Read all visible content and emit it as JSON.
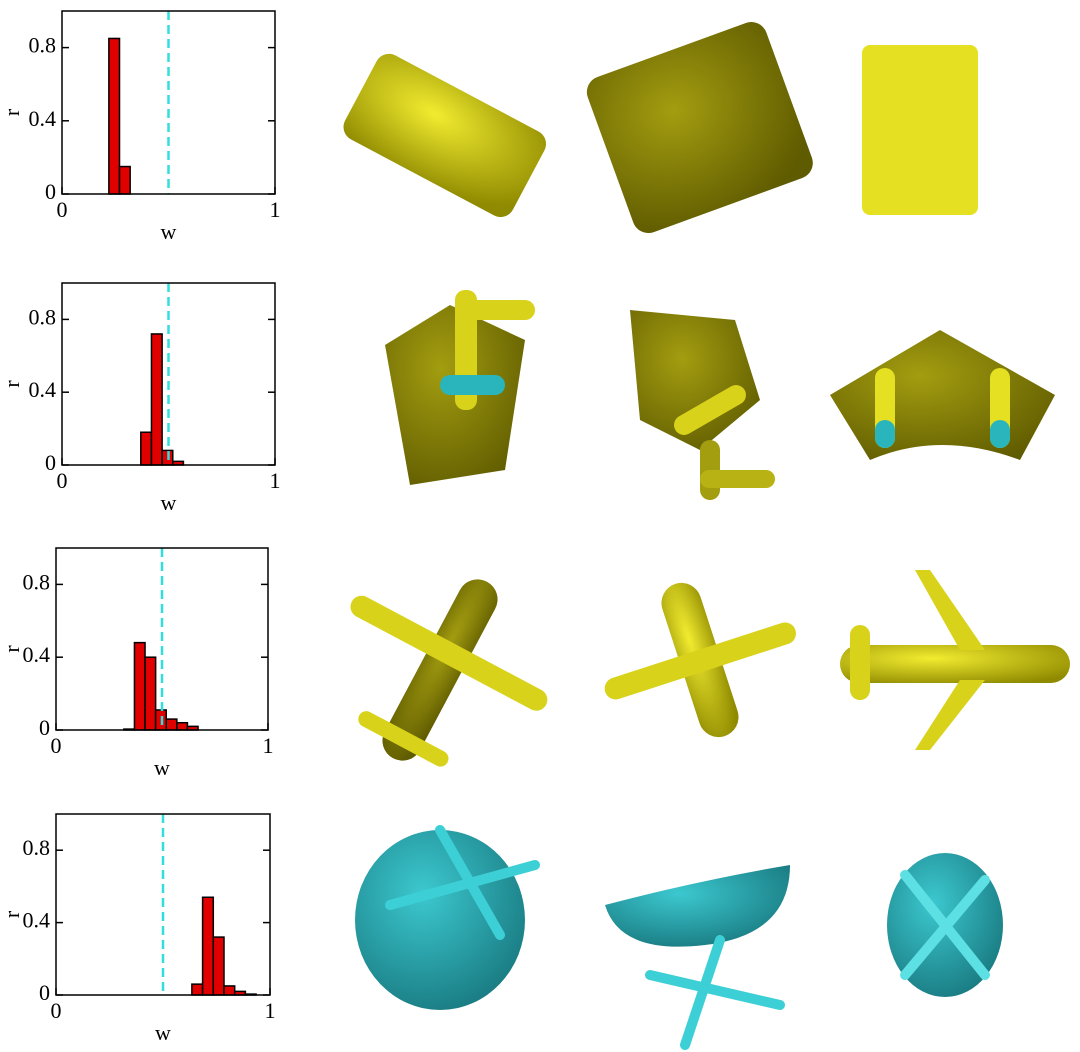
{
  "chart_data": [
    {
      "type": "histogram",
      "xlabel": "w",
      "ylabel": "r",
      "bins": [
        0.22,
        0.27,
        0.32
      ],
      "values": [
        0.85,
        0.15
      ],
      "color": "#e00000",
      "xlim": [
        0,
        1
      ],
      "ylim": [
        0,
        1
      ],
      "xticks": [
        0,
        1
      ],
      "yticks": [
        0,
        0.4,
        0.8
      ],
      "vline": 0.5,
      "vline_color": "#33dddd"
    },
    {
      "type": "histogram",
      "xlabel": "w",
      "ylabel": "r",
      "bins": [
        0.37,
        0.42,
        0.47,
        0.52,
        0.57
      ],
      "values": [
        0.18,
        0.72,
        0.08,
        0.02
      ],
      "color": "#e00000",
      "xlim": [
        0,
        1
      ],
      "ylim": [
        0,
        1
      ],
      "xticks": [
        0,
        1
      ],
      "yticks": [
        0,
        0.4,
        0.8
      ],
      "vline": 0.5,
      "vline_color": "#33dddd"
    },
    {
      "type": "histogram",
      "xlabel": "w",
      "ylabel": "r",
      "bins": [
        0.32,
        0.37,
        0.42,
        0.47,
        0.52,
        0.57,
        0.62,
        0.67
      ],
      "values": [
        0.005,
        0.48,
        0.4,
        0.11,
        0.06,
        0.04,
        0.02
      ],
      "color": "#e00000",
      "xlim": [
        0,
        1
      ],
      "ylim": [
        0,
        1
      ],
      "xticks": [
        0,
        1
      ],
      "yticks": [
        0,
        0.4,
        0.8
      ],
      "vline": 0.5,
      "vline_color": "#33dddd"
    },
    {
      "type": "histogram",
      "xlabel": "w",
      "ylabel": "r",
      "bins": [
        0.635,
        0.685,
        0.735,
        0.785,
        0.835,
        0.885,
        0.935
      ],
      "values": [
        0.06,
        0.54,
        0.32,
        0.05,
        0.02,
        0.005
      ],
      "color": "#e00000",
      "xlim": [
        0,
        1
      ],
      "ylim": [
        0,
        1
      ],
      "xticks": [
        0,
        1
      ],
      "yticks": [
        0,
        0.4,
        0.8
      ],
      "vline": 0.5,
      "vline_color": "#33dddd"
    }
  ]
}
